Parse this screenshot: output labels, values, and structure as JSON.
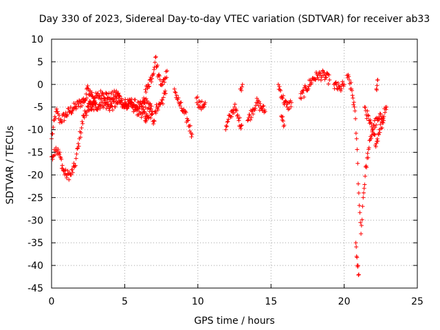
{
  "chart_data": {
    "type": "scatter",
    "title": "Day 330 of 2023, Sidereal Day-to-day VTEC variation (SDTVAR) for receiver ab33",
    "xlabel": "GPS time / hours",
    "ylabel": "SDTVAR / TECUs",
    "xlim": [
      0,
      25
    ],
    "ylim": [
      -45,
      10
    ],
    "xticks": [
      0,
      5,
      10,
      15,
      20,
      25
    ],
    "yticks": [
      10,
      5,
      0,
      -5,
      -10,
      -15,
      -20,
      -25,
      -30,
      -35,
      -40,
      -45
    ],
    "grid": true,
    "marker": "+",
    "color": "#ff0000",
    "series": [
      {
        "name": "SDTVAR",
        "segments": [
          {
            "x": [
              0.0,
              0.3,
              0.6,
              0.9,
              1.2,
              1.6,
              2.0,
              2.4
            ],
            "y": [
              -12,
              -6,
              -8,
              -7,
              -6,
              -5,
              -4,
              -3
            ]
          },
          {
            "x": [
              0.0,
              0.3,
              0.6,
              0.8,
              1.0,
              1.3,
              1.6,
              1.9,
              2.2,
              2.5,
              3.0
            ],
            "y": [
              -16,
              -14,
              -16,
              -19,
              -20,
              -20,
              -18,
              -12,
              -7,
              -5,
              -4
            ]
          },
          {
            "x": [
              2.4,
              3.0,
              3.5,
              4.0,
              4.5,
              5.0,
              5.5,
              6.0,
              6.5,
              6.9
            ],
            "y": [
              -1,
              -3,
              -2,
              -3,
              -2,
              -5,
              -4,
              -5,
              -4,
              -6
            ]
          },
          {
            "x": [
              2.5,
              3.0,
              3.5,
              4.0,
              4.5,
              5.0,
              5.5,
              6.0,
              6.5
            ],
            "y": [
              -5,
              -5,
              -4,
              -5,
              -4,
              -4,
              -5,
              -6,
              -7
            ]
          },
          {
            "x": [
              6.3,
              6.6,
              6.9,
              7.1,
              7.3,
              7.6,
              7.9
            ],
            "y": [
              -3,
              0,
              2,
              6,
              2,
              0,
              3
            ]
          },
          {
            "x": [
              6.4,
              6.7,
              7.0,
              7.2,
              7.5,
              7.8
            ],
            "y": [
              -8,
              -6,
              -8,
              -5,
              -4,
              -2
            ]
          },
          {
            "x": [
              8.4,
              8.7,
              9.0,
              9.3,
              9.6
            ],
            "y": [
              -1,
              -4,
              -6,
              -8,
              -11
            ]
          },
          {
            "x": [
              9.9,
              10.2,
              10.5
            ],
            "y": [
              -3,
              -5,
              -4
            ]
          },
          {
            "x": [
              11.9,
              12.2,
              12.5,
              12.8,
              13.0
            ],
            "y": [
              -10,
              -7,
              -5,
              -8,
              -9
            ]
          },
          {
            "x": [
              12.9,
              13.05
            ],
            "y": [
              -1,
              0
            ]
          },
          {
            "x": [
              13.4,
              13.7,
              14.0,
              14.3,
              14.6
            ],
            "y": [
              -8,
              -6,
              -4,
              -5,
              -6
            ]
          },
          {
            "x": [
              15.5,
              15.8,
              16.1,
              16.4
            ],
            "y": [
              0,
              -3,
              -5,
              -4
            ]
          },
          {
            "x": [
              15.7,
              15.9
            ],
            "y": [
              -7,
              -9
            ]
          },
          {
            "x": [
              17.0,
              17.4,
              17.8,
              18.2,
              18.6,
              19.0
            ],
            "y": [
              -3,
              -1,
              1,
              2,
              2,
              1
            ]
          },
          {
            "x": [
              19.3,
              19.7,
              20.0
            ],
            "y": [
              0,
              -1,
              0
            ]
          },
          {
            "x": [
              20.2,
              20.5,
              20.7,
              20.85,
              21.0,
              21.15,
              21.3,
              21.5,
              21.7,
              22.0,
              22.3,
              22.6,
              22.9
            ],
            "y": [
              2,
              -1,
              -5,
              -12,
              -24,
              -33,
              -25,
              -18,
              -14,
              -9,
              -8,
              -7,
              -5
            ]
          },
          {
            "x": [
              20.8,
              20.9,
              21.0
            ],
            "y": [
              -35,
              -40,
              -42
            ]
          },
          {
            "x": [
              21.4,
              21.7,
              22.0,
              22.2,
              22.4,
              22.7
            ],
            "y": [
              -5,
              -8,
              -11,
              -13,
              -10,
              -8
            ]
          },
          {
            "x": [
              22.2,
              22.3
            ],
            "y": [
              -1,
              1
            ]
          }
        ]
      }
    ]
  }
}
